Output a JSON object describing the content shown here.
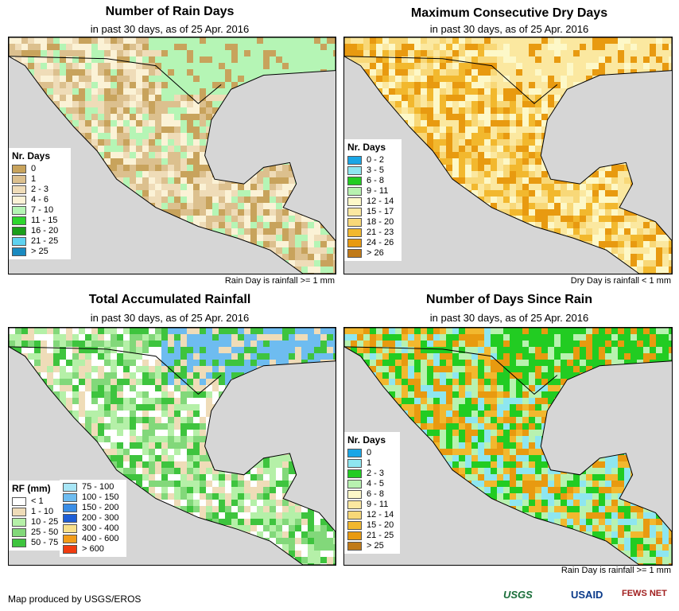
{
  "panels": [
    {
      "id": "rain-days",
      "title": "Number of Rain Days",
      "subtitle": "in past 30 days, as of 25 Apr. 2016",
      "legend_title": "Nr. Days",
      "legend": [
        {
          "label": "0",
          "color": "#c8a35c"
        },
        {
          "label": "1",
          "color": "#dcc08e"
        },
        {
          "label": "2 - 3",
          "color": "#efdcb8"
        },
        {
          "label": "4 - 6",
          "color": "#fbf2d6"
        },
        {
          "label": "7 - 10",
          "color": "#b5f5b5"
        },
        {
          "label": "11 - 15",
          "color": "#2ed62e"
        },
        {
          "label": "16 - 20",
          "color": "#1a9e1a"
        },
        {
          "label": "21 - 25",
          "color": "#5ed2f0"
        },
        {
          "label": "> 25",
          "color": "#1a8ac0"
        }
      ],
      "note": "Rain Day is rainfall >= 1 mm"
    },
    {
      "id": "dry-days",
      "title": "Maximum Consecutive Dry Days",
      "subtitle": "in past 30 days, as of 25 Apr. 2016",
      "legend_title": "Nr. Days",
      "legend": [
        {
          "label": "0 - 2",
          "color": "#1aa6e6"
        },
        {
          "label": "3 - 5",
          "color": "#8ee6f0"
        },
        {
          "label": "6 - 8",
          "color": "#22cc22"
        },
        {
          "label": "9 - 11",
          "color": "#b8f2b0"
        },
        {
          "label": "12 - 14",
          "color": "#fdf8c8"
        },
        {
          "label": "15 - 17",
          "color": "#fbe8a0"
        },
        {
          "label": "18 - 20",
          "color": "#f8d878"
        },
        {
          "label": "21 - 23",
          "color": "#f2b82e"
        },
        {
          "label": "24 - 26",
          "color": "#e89a10"
        },
        {
          "label": "> 26",
          "color": "#c07a18"
        }
      ],
      "note": "Dry Day is rainfall < 1 mm"
    },
    {
      "id": "total-rainfall",
      "title": "Total Accumulated Rainfall",
      "subtitle": "in past 30 days, as of 25 Apr. 2016",
      "legend_title": "RF (mm)",
      "legend": [
        {
          "label": "< 1",
          "color": "#ffffff"
        },
        {
          "label": "1 - 10",
          "color": "#efdcb8"
        },
        {
          "label": "10 - 25",
          "color": "#b5f0a8"
        },
        {
          "label": "25 - 50",
          "color": "#82d87a"
        },
        {
          "label": "50 - 75",
          "color": "#3ec43e"
        }
      ],
      "legend2": [
        {
          "label": "75 - 100",
          "color": "#a8e6f6"
        },
        {
          "label": "100 - 150",
          "color": "#6ebcf0"
        },
        {
          "label": "150 - 200",
          "color": "#3a8ee6"
        },
        {
          "label": "200 - 300",
          "color": "#1e5ed6"
        },
        {
          "label": "300 - 400",
          "color": "#f8e08a"
        },
        {
          "label": "400 - 600",
          "color": "#f29c1a"
        },
        {
          "label": "> 600",
          "color": "#f03c10"
        }
      ],
      "note": ""
    },
    {
      "id": "days-since-rain",
      "title": "Number of Days Since Rain",
      "subtitle": "in past 30 days, as of 25 Apr. 2016",
      "legend_title": "Nr. Days",
      "legend": [
        {
          "label": "0",
          "color": "#1aa6e6"
        },
        {
          "label": "1",
          "color": "#8ee6f0"
        },
        {
          "label": "2 - 3",
          "color": "#22cc22"
        },
        {
          "label": "4 - 5",
          "color": "#b8f2b0"
        },
        {
          "label": "6 - 8",
          "color": "#fdf8c8"
        },
        {
          "label": "9 - 11",
          "color": "#fbe8a0"
        },
        {
          "label": "12 - 14",
          "color": "#f8d878"
        },
        {
          "label": "15 - 20",
          "color": "#f2b82e"
        },
        {
          "label": "21 - 25",
          "color": "#e89a10"
        },
        {
          "label": "> 25",
          "color": "#c07a18"
        }
      ],
      "note": "Rain Day is rainfall >= 1 mm"
    }
  ],
  "footer": {
    "credit": "Map produced by USGS/EROS",
    "logos": [
      "USGS",
      "USAID",
      "FEWS NET"
    ]
  },
  "colors": {
    "ocean": "#d6d6d6",
    "border": "#000000"
  }
}
